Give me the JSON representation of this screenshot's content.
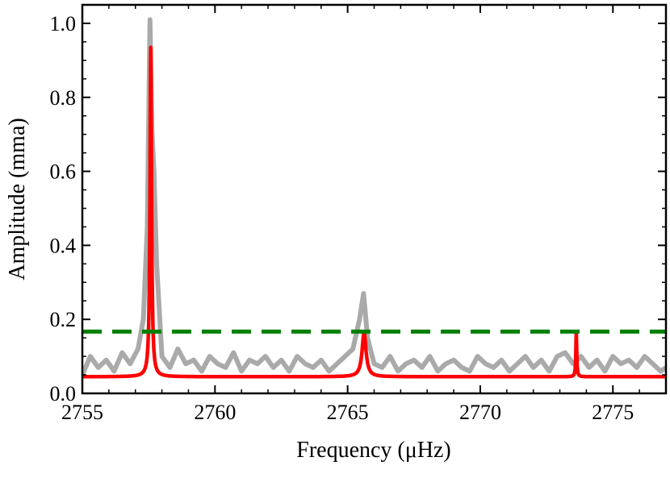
{
  "chart_data": {
    "type": "line",
    "title": "",
    "xlabel": "Frequency (μHz)",
    "ylabel": "Amplitude (mma)",
    "xlim": [
      2755.0,
      2777.0
    ],
    "ylim": [
      0.0,
      1.05
    ],
    "xticks": [
      2755,
      2760,
      2765,
      2770,
      2775
    ],
    "xtick_labels": [
      "2755",
      "2760",
      "2765",
      "2770",
      "2775"
    ],
    "yticks": [
      0.0,
      0.2,
      0.4,
      0.6,
      0.8,
      1.0
    ],
    "ytick_labels": [
      "0.0",
      "0.2",
      "0.4",
      "0.6",
      "0.8",
      "1.0"
    ],
    "grid": false,
    "legend": "none",
    "series": [
      {
        "style": "gray-spectrum",
        "color": "#aaaaaa",
        "x": [
          2755.0,
          2755.3,
          2755.6,
          2755.9,
          2756.2,
          2756.5,
          2756.8,
          2757.1,
          2757.3,
          2757.45,
          2757.55,
          2757.62,
          2757.7,
          2757.8,
          2758.0,
          2758.3,
          2758.6,
          2758.9,
          2759.2,
          2759.5,
          2759.8,
          2760.1,
          2760.4,
          2760.7,
          2761.0,
          2761.3,
          2761.6,
          2761.9,
          2762.2,
          2762.5,
          2762.8,
          2763.1,
          2763.4,
          2763.7,
          2764.0,
          2764.3,
          2764.6,
          2764.9,
          2765.2,
          2765.45,
          2765.6,
          2765.75,
          2766.0,
          2766.3,
          2766.6,
          2766.9,
          2767.2,
          2767.5,
          2767.8,
          2768.1,
          2768.4,
          2768.7,
          2769.0,
          2769.3,
          2769.6,
          2769.9,
          2770.2,
          2770.5,
          2770.8,
          2771.1,
          2771.4,
          2771.7,
          2772.0,
          2772.3,
          2772.6,
          2772.9,
          2773.2,
          2773.5,
          2773.8,
          2774.1,
          2774.4,
          2774.7,
          2775.0,
          2775.3,
          2775.6,
          2775.9,
          2776.2,
          2776.5,
          2776.8,
          2777.0
        ],
        "y": [
          0.05,
          0.1,
          0.07,
          0.09,
          0.06,
          0.11,
          0.08,
          0.12,
          0.2,
          0.45,
          1.01,
          0.72,
          0.6,
          0.35,
          0.1,
          0.07,
          0.12,
          0.08,
          0.09,
          0.06,
          0.1,
          0.08,
          0.07,
          0.11,
          0.06,
          0.09,
          0.08,
          0.1,
          0.07,
          0.09,
          0.06,
          0.1,
          0.08,
          0.07,
          0.09,
          0.06,
          0.08,
          0.1,
          0.12,
          0.2,
          0.27,
          0.15,
          0.08,
          0.07,
          0.1,
          0.06,
          0.08,
          0.09,
          0.07,
          0.1,
          0.06,
          0.08,
          0.09,
          0.07,
          0.06,
          0.1,
          0.08,
          0.07,
          0.09,
          0.06,
          0.08,
          0.1,
          0.07,
          0.09,
          0.06,
          0.1,
          0.11,
          0.08,
          0.1,
          0.07,
          0.09,
          0.06,
          0.1,
          0.08,
          0.09,
          0.07,
          0.1,
          0.08,
          0.06,
          0.07
        ]
      },
      {
        "style": "lorentzian-model",
        "color": "#ff0000",
        "baseline": 0.045,
        "peaks": [
          {
            "center": 2757.58,
            "amplitude": 0.935,
            "width": 0.035
          },
          {
            "center": 2765.62,
            "amplitude": 0.165,
            "width": 0.09
          },
          {
            "center": 2773.62,
            "amplitude": 0.165,
            "width": 0.02
          }
        ]
      },
      {
        "style": "dashed-threshold",
        "color": "#008000",
        "x": [
          2755.0,
          2777.0
        ],
        "y": [
          0.167,
          0.167
        ]
      }
    ]
  }
}
